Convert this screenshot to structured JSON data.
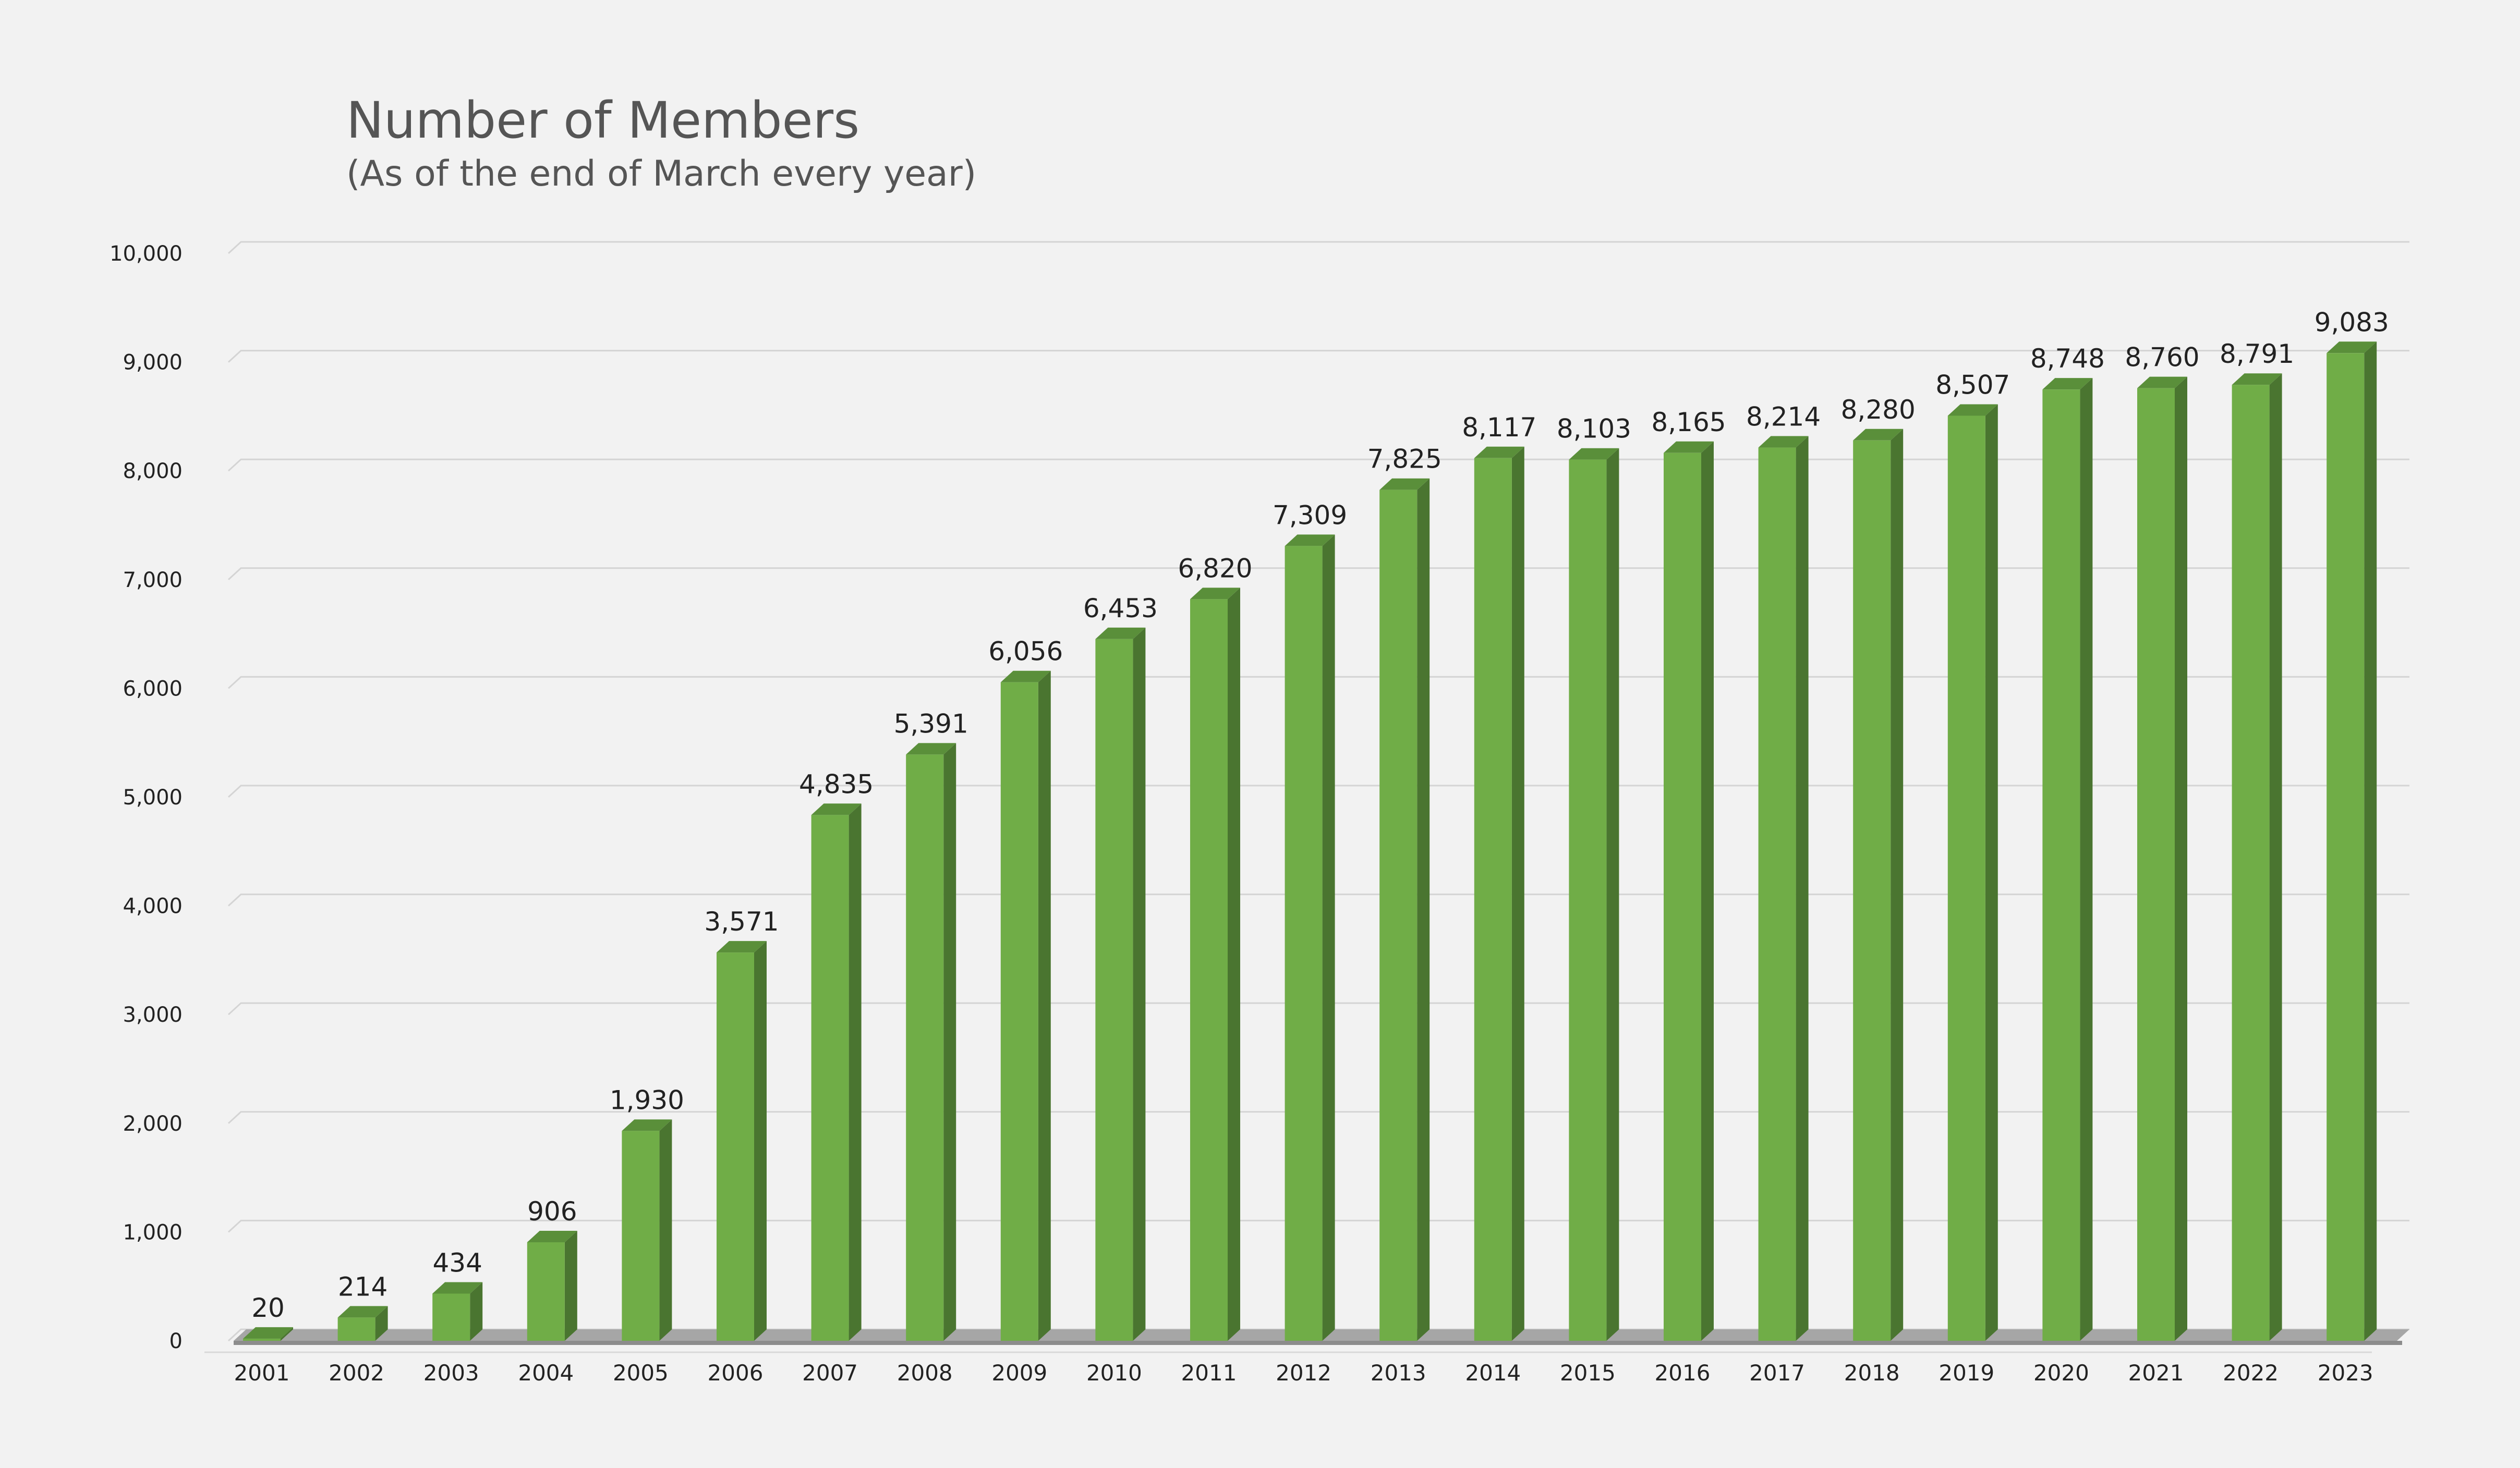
{
  "colors": {
    "background": "#f2f2f2",
    "bar_front": "#70ad47",
    "bar_side": "#4a7530",
    "bar_top": "#5a8f3a",
    "grid": "#d4d4d4",
    "floor": "#8c8c8c"
  },
  "chart_data": {
    "type": "bar",
    "title": "Number of Members",
    "subtitle": "(As of the end of March every year)",
    "categories": [
      "2001",
      "2002",
      "2003",
      "2004",
      "2005",
      "2006",
      "2007",
      "2008",
      "2009",
      "2010",
      "2011",
      "2012",
      "2013",
      "2014",
      "2015",
      "2016",
      "2017",
      "2018",
      "2019",
      "2020",
      "2021",
      "2022",
      "2023"
    ],
    "values": [
      20,
      214,
      434,
      906,
      1930,
      3571,
      4835,
      5391,
      6056,
      6453,
      6820,
      7309,
      7825,
      8117,
      8103,
      8165,
      8214,
      8280,
      8507,
      8748,
      8760,
      8791,
      9083
    ],
    "data_labels": [
      "20",
      "214",
      "434",
      "906",
      "1,930",
      "3,571",
      "4,835",
      "5,391",
      "6,056",
      "6,453",
      "6,820",
      "7,309",
      "7,825",
      "8,117",
      "8,103",
      "8,165",
      "8,214",
      "8,280",
      "8,507",
      "8,748",
      "8,760",
      "8,791",
      "9,083"
    ],
    "ylim": [
      0,
      10000
    ],
    "yticks": [
      0,
      1000,
      2000,
      3000,
      4000,
      5000,
      6000,
      7000,
      8000,
      9000,
      10000
    ],
    "ytick_labels": [
      "0",
      "1,000",
      "2,000",
      "3,000",
      "4,000",
      "5,000",
      "6,000",
      "7,000",
      "8,000",
      "9,000",
      "10,000"
    ],
    "grid": true,
    "style": "3d"
  }
}
